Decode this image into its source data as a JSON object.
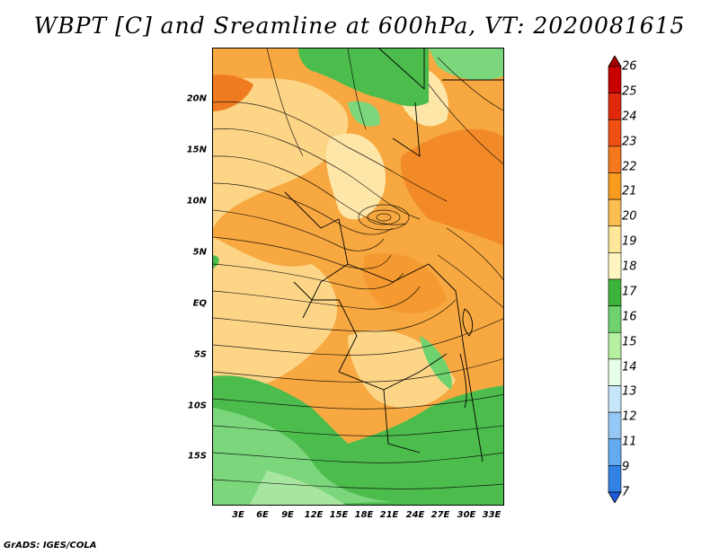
{
  "title": "WBPT [C] and Sreamline at 600hPa, VT: 2020081615",
  "credit": "GrADS: IGES/COLA",
  "lat_labels": [
    "20N",
    "15N",
    "10N",
    "5N",
    "EQ",
    "5S",
    "10S",
    "15S"
  ],
  "lon_labels": [
    "3E",
    "6E",
    "9E",
    "12E",
    "15E",
    "18E",
    "21E",
    "24E",
    "27E",
    "30E",
    "33E"
  ],
  "colorbar": {
    "labels": [
      "26",
      "25",
      "24",
      "23",
      "22",
      "21",
      "20",
      "19",
      "18",
      "17",
      "16",
      "15",
      "14",
      "13",
      "12",
      "11",
      "9",
      "7"
    ],
    "colors": [
      "#a50000",
      "#c80000",
      "#e1280a",
      "#f05014",
      "#f5781e",
      "#f99b1e",
      "#fbbe50",
      "#fde89a",
      "#fff5c0",
      "#3cb43c",
      "#6ed26e",
      "#b4f0a0",
      "#e6ffe6",
      "#c8e6fa",
      "#96c8f5",
      "#64aaf0",
      "#3282e6",
      "#1e5adc"
    ]
  }
}
